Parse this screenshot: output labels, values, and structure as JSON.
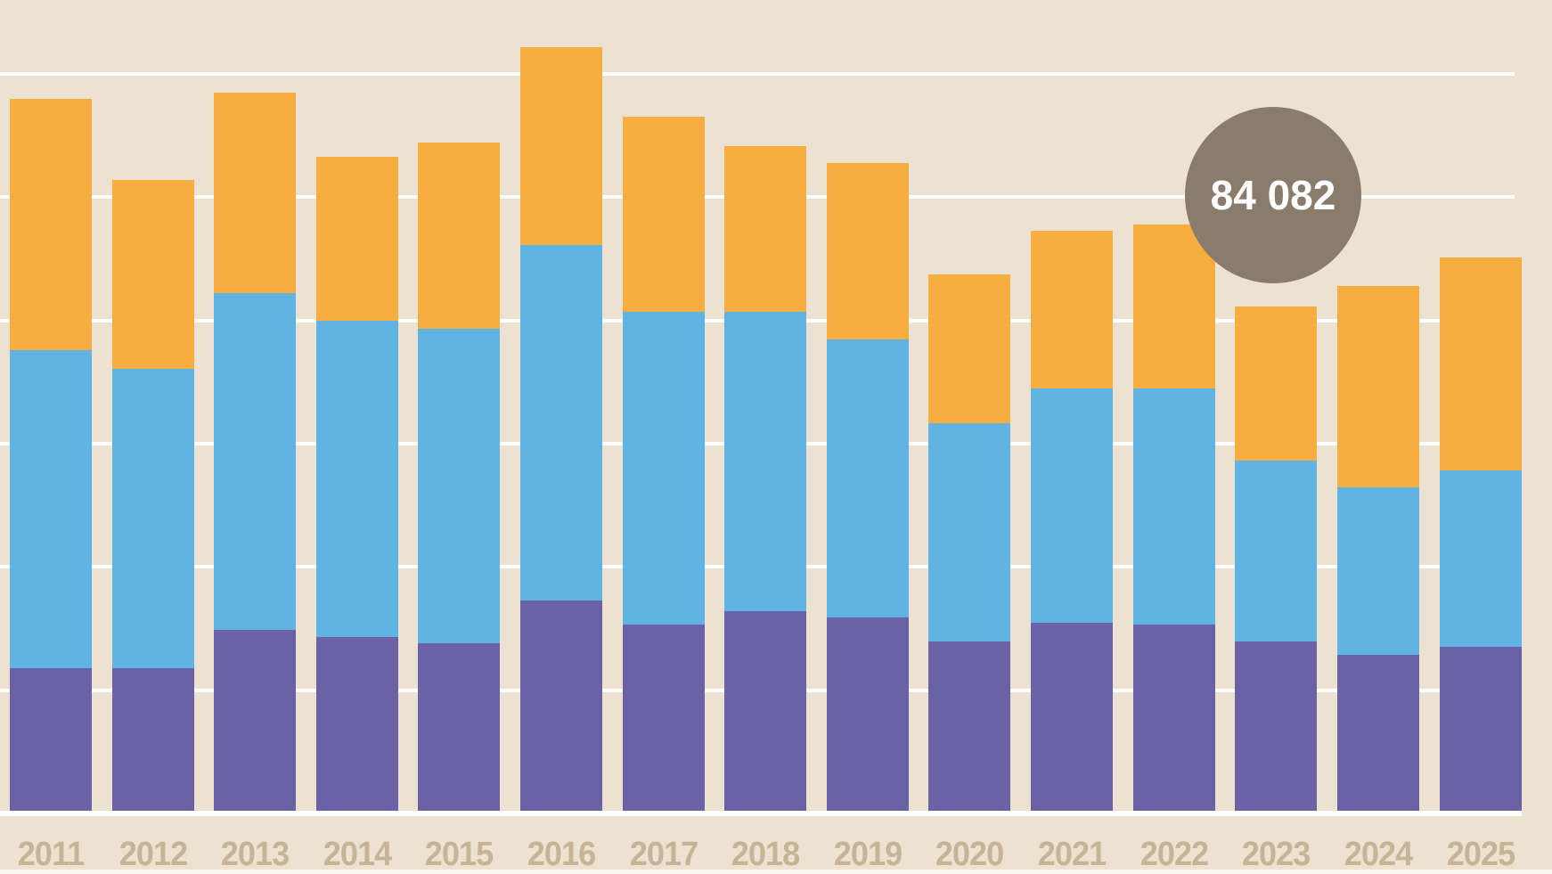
{
  "page": {
    "background_color": "#EDE2D2",
    "gridline_color": "#FFFFFF",
    "baseline_color": "#FFFFFF",
    "bottom_strip_color": "#FBF7EF",
    "axis_label_color": "#C5B496"
  },
  "badge": {
    "value": "84 082",
    "bg_color": "#8A7C6C",
    "text_color": "#FFFFFF"
  },
  "chart_data": {
    "type": "bar",
    "stacked": true,
    "title": "",
    "xlabel": "",
    "ylabel": "",
    "categories": [
      "2011",
      "2012",
      "2013",
      "2014",
      "2015",
      "2016",
      "2017",
      "2018",
      "2019",
      "2020",
      "2021",
      "2022",
      "2023",
      "2024",
      "2025"
    ],
    "series": [
      {
        "name": "bottom-purple",
        "color": "#6A61A6",
        "values": [
          24100,
          24100,
          30400,
          29300,
          28200,
          35300,
          31300,
          33500,
          32500,
          28500,
          31600,
          31300,
          28500,
          26300,
          27600
        ]
      },
      {
        "name": "middle-blue",
        "color": "#5FB4E4",
        "values": [
          52800,
          49700,
          56000,
          52500,
          52300,
          59100,
          51900,
          49800,
          46100,
          36200,
          38900,
          39300,
          30000,
          27800,
          29400
        ]
      },
      {
        "name": "top-orange",
        "color": "#F5AE3F",
        "values": [
          41700,
          31300,
          33200,
          27200,
          30900,
          32700,
          32500,
          27500,
          29300,
          24800,
          26200,
          27200,
          25600,
          33400,
          35200
        ]
      }
    ],
    "annotation": {
      "text": "84 082",
      "category": "2023"
    },
    "ylim": [
      0,
      135000
    ],
    "gridline_interval": 20450,
    "grid": true,
    "legend": false,
    "y_axis_tick_labels_visible": false
  }
}
